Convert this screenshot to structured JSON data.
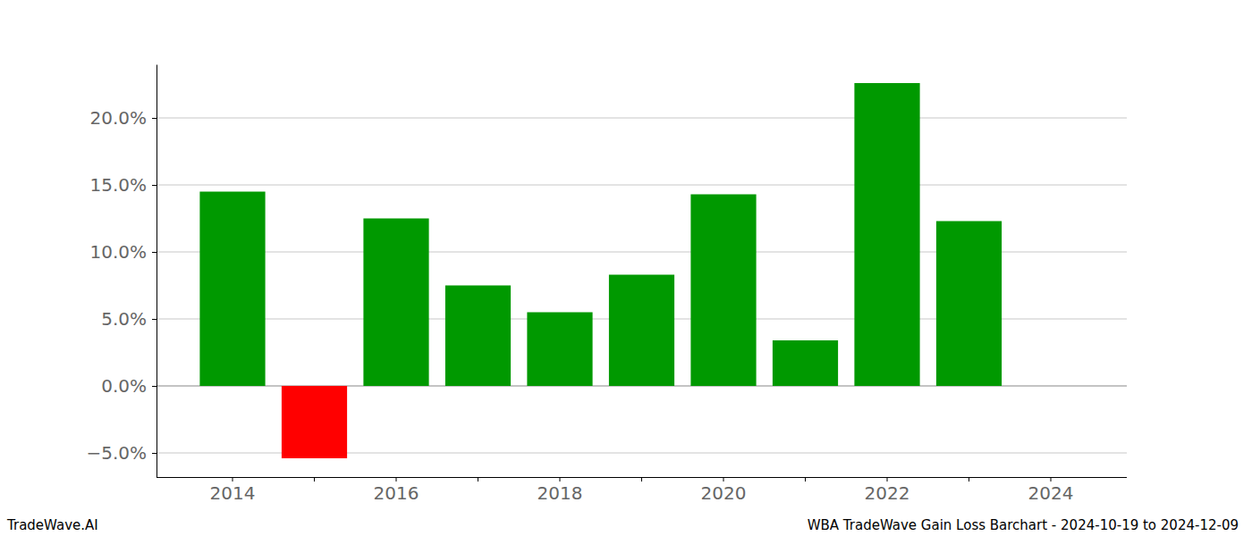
{
  "chart_data": {
    "type": "bar",
    "title": "WBA TradeWave Gain Loss Barchart - 2024-10-19 to 2024-12-09",
    "annotations": [
      "TradeWave.AI"
    ],
    "categories": [
      "2014",
      null,
      "2016",
      null,
      "2018",
      null,
      "2020",
      null,
      "2022",
      null,
      "2024"
    ],
    "values": [
      14.5,
      -5.4,
      12.5,
      7.5,
      5.5,
      8.3,
      14.3,
      3.4,
      22.6,
      12.3,
      null
    ],
    "colors": [
      "#009900",
      "#ff0000",
      "#009900",
      "#009900",
      "#009900",
      "#009900",
      "#009900",
      "#009900",
      "#009900",
      "#009900",
      null
    ],
    "ylim": [
      -6.8,
      24
    ],
    "yticks": [
      {
        "value": -5,
        "label": "−5.0%"
      },
      {
        "value": 0,
        "label": "0.0%"
      },
      {
        "value": 5,
        "label": "5.0%"
      },
      {
        "value": 10,
        "label": "10.0%"
      },
      {
        "value": 15,
        "label": "15.0%"
      },
      {
        "value": 20,
        "label": "20.0%"
      }
    ],
    "grid": true
  }
}
